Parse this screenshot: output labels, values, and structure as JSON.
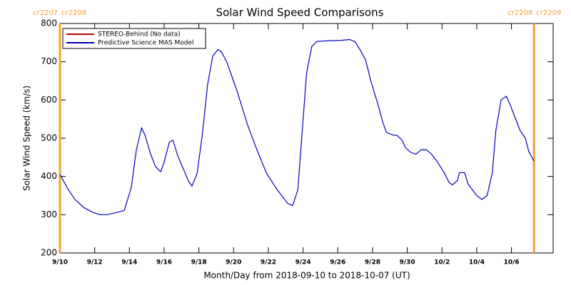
{
  "chart_data": {
    "type": "line",
    "title": "Solar Wind Speed Comparisons",
    "x_label": "Month/Day from 2018-09-10 to 2018-10-07 (UT)",
    "y_label": "Solar Wind Speed (km/s)",
    "xlim": [
      0,
      28.4
    ],
    "ylim": [
      200,
      800
    ],
    "yticks": [
      200,
      300,
      400,
      500,
      600,
      700,
      800
    ],
    "xticks": [
      {
        "value": 0,
        "label": "9/10"
      },
      {
        "value": 2,
        "label": "9/12"
      },
      {
        "value": 4,
        "label": "9/14"
      },
      {
        "value": 6,
        "label": "9/16"
      },
      {
        "value": 8,
        "label": "9/18"
      },
      {
        "value": 10,
        "label": "9/20"
      },
      {
        "value": 12,
        "label": "9/22"
      },
      {
        "value": 14,
        "label": "9/24"
      },
      {
        "value": 16,
        "label": "9/26"
      },
      {
        "value": 18,
        "label": "9/28"
      },
      {
        "value": 20,
        "label": "9/30"
      },
      {
        "value": 22,
        "label": "10/2"
      },
      {
        "value": 24,
        "label": "10/4"
      },
      {
        "value": 26,
        "label": "10/6"
      }
    ],
    "markers": [
      {
        "x": 0,
        "color": "#f5a030",
        "labels": [
          "cr2207",
          "cr2208"
        ]
      },
      {
        "x": 27.3,
        "color": "#f5a030",
        "labels": [
          "cr2208",
          "cr2209"
        ]
      }
    ],
    "series": [
      {
        "name": "STEREO-Behind (No data)",
        "color": "#c00000",
        "x": [],
        "values": []
      },
      {
        "name": "Predictive Science MAS Model",
        "color": "#0000c0",
        "x": [
          0,
          0.45,
          0.86,
          1.4,
          1.9,
          2.3,
          2.7,
          3.2,
          3.7,
          4.1,
          4.4,
          4.7,
          4.9,
          5.2,
          5.5,
          5.8,
          6.0,
          6.3,
          6.5,
          6.8,
          7.1,
          7.4,
          7.6,
          7.9,
          8.2,
          8.5,
          8.8,
          9.1,
          9.3,
          9.6,
          10.2,
          10.8,
          11.4,
          11.9,
          12.5,
          13.1,
          13.4,
          13.7,
          14.2,
          14.5,
          14.8,
          15.5,
          16.2,
          16.7,
          17.0,
          17.3,
          17.6,
          17.9,
          18.3,
          18.6,
          18.8,
          19.2,
          19.4,
          19.7,
          19.9,
          20.2,
          20.5,
          20.8,
          21.1,
          21.4,
          21.7,
          22.1,
          22.4,
          22.6,
          22.9,
          23.0,
          23.3,
          23.5,
          24.0,
          24.3,
          24.6,
          24.9,
          25.1,
          25.4,
          25.7,
          25.9,
          26.2,
          26.5,
          26.8,
          27.0,
          27.3
        ],
        "values": [
          405,
          368,
          340,
          318,
          306,
          300,
          300,
          305,
          311,
          370,
          470,
          527,
          508,
          461,
          426,
          412,
          438,
          490,
          495,
          452,
          420,
          388,
          375,
          408,
          510,
          640,
          715,
          732,
          726,
          700,
          623,
          535,
          463,
          408,
          366,
          330,
          324,
          365,
          670,
          740,
          753,
          755,
          756,
          758,
          752,
          730,
          705,
          650,
          590,
          540,
          515,
          508,
          508,
          495,
          475,
          463,
          458,
          470,
          470,
          458,
          440,
          412,
          385,
          378,
          390,
          410,
          410,
          380,
          350,
          340,
          350,
          410,
          520,
          600,
          610,
          590,
          555,
          520,
          500,
          465,
          440
        ]
      }
    ]
  }
}
